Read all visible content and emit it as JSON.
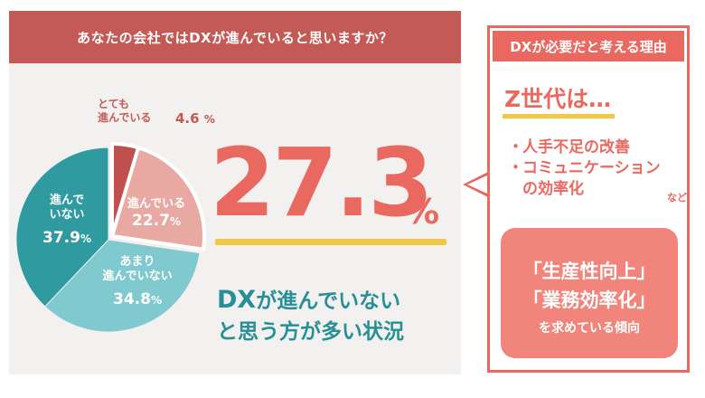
{
  "header": {
    "question": "あなたの会社ではDXが進んでいると思いますか？"
  },
  "chart_data": {
    "type": "pie",
    "title": "",
    "slices": [
      {
        "label_line1": "とても",
        "label_line2": "進んでいる",
        "value": 4.6,
        "value_text": "4.6",
        "color": "#c0504d"
      },
      {
        "label": "進んでいる",
        "value": 22.7,
        "value_text": "22.7",
        "color": "#e9a9a3"
      },
      {
        "label": "あまり進んでいない",
        "label_line1": "あまり",
        "label_line2": "進んでいない",
        "value": 34.8,
        "value_text": "34.8",
        "color": "#7fc9cf"
      },
      {
        "label": "進んでいない",
        "label_line1": "進んで",
        "label_line2": "いない",
        "value": 37.9,
        "value_text": "37.9",
        "color": "#2f9aa0"
      }
    ],
    "unit": "%"
  },
  "highlight": {
    "number": "27.3",
    "unit": "%",
    "conclusion_dx": "DX",
    "conclusion_line1_rest": "が進んでいない",
    "conclusion_line2": "と思う方が多い状況"
  },
  "reasons_panel": {
    "title": "DXが必要だと考える理由",
    "gen_z": "Z世代は…",
    "items": [
      {
        "bullet": "・",
        "text": "人手不足の改善"
      },
      {
        "bullet": "・",
        "text": "コミュニケーション"
      },
      {
        "bullet": "",
        "text": "の効率化"
      }
    ],
    "etc": "など",
    "callout_line1": "「生産性向上」",
    "callout_line2": "「業務効率化」",
    "callout_line3": "を求めている傾向"
  }
}
